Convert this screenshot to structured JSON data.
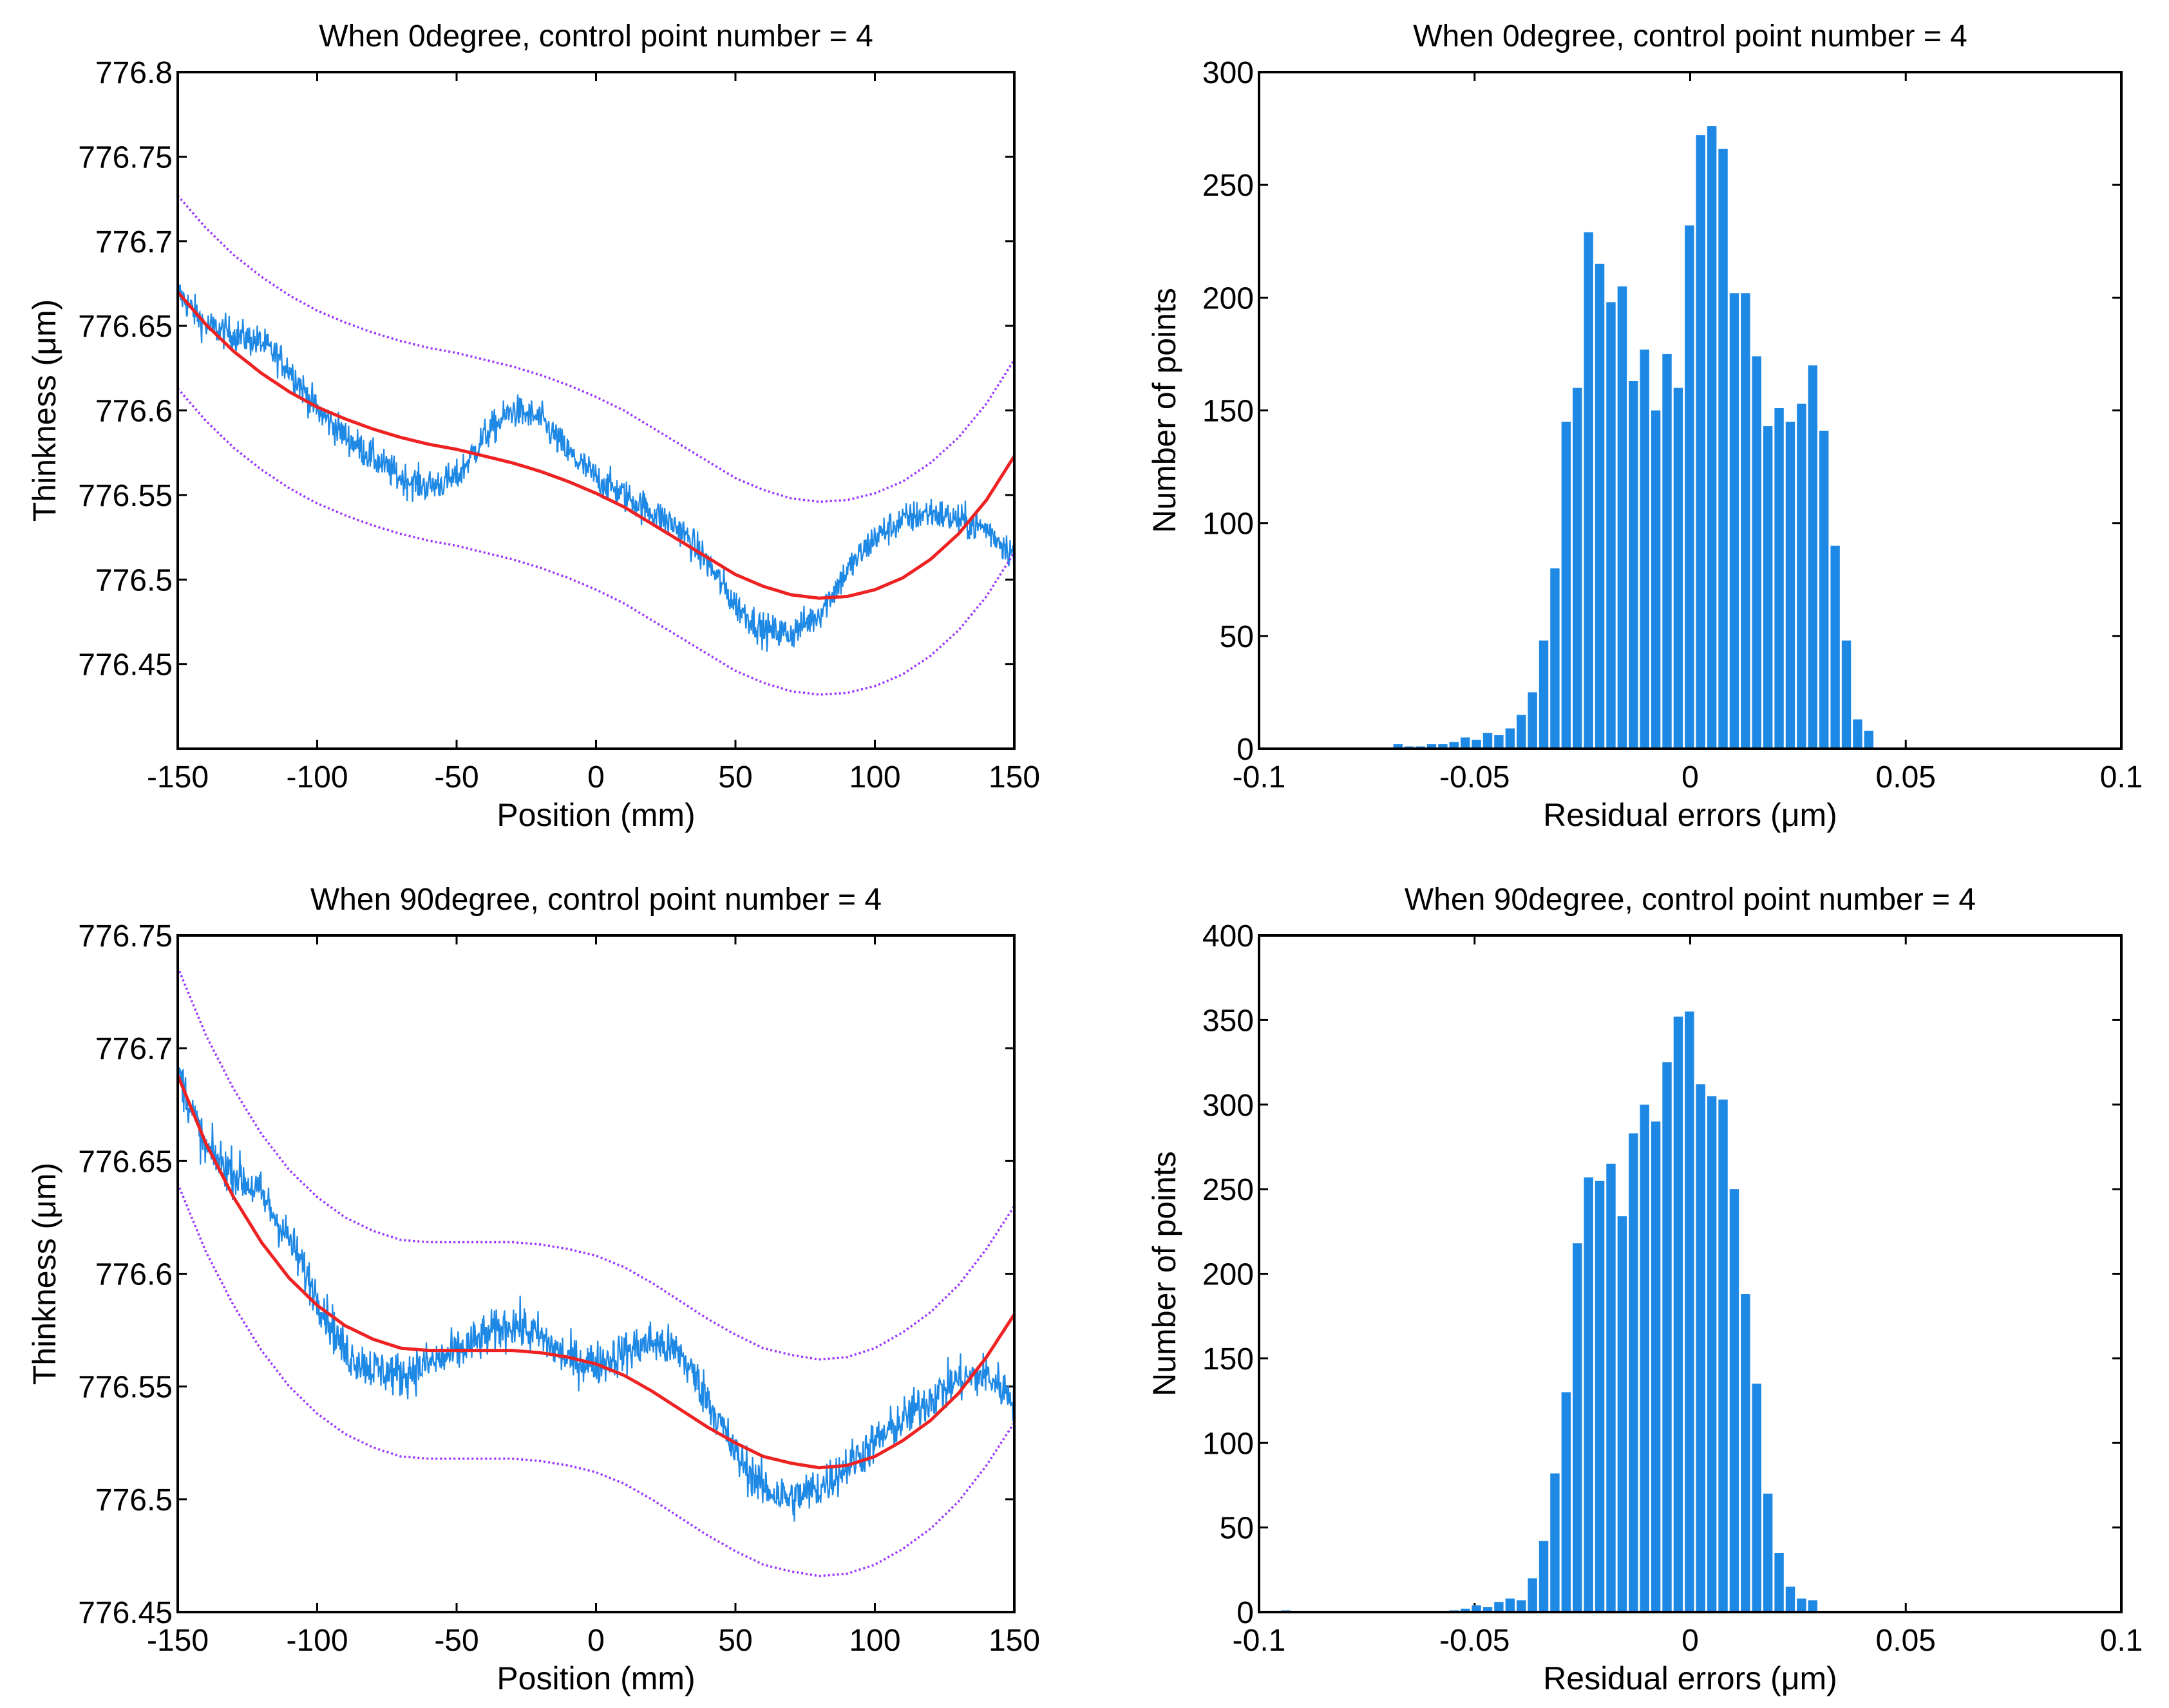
{
  "chart_data": [
    {
      "id": "p1",
      "type": "line",
      "title": "When 0degree, control point number = 4",
      "xlabel": "Position (mm)",
      "ylabel": "Thinkness (μm)",
      "xlim": [
        -150,
        150
      ],
      "ylim": [
        776.4,
        776.8
      ],
      "xticks": [
        -150,
        -100,
        -50,
        0,
        50,
        100,
        150
      ],
      "xtick_labels": [
        "-150",
        "-100",
        "-50",
        "0",
        "50",
        "100",
        "150"
      ],
      "yticks": [
        776.45,
        776.5,
        776.55,
        776.6,
        776.65,
        776.7,
        776.75,
        776.8
      ],
      "ytick_labels": [
        "776.45",
        "776.5",
        "776.55",
        "776.6",
        "776.65",
        "776.7",
        "776.75",
        "776.8"
      ],
      "colors": {
        "measured": "#1e88e5",
        "fit": "#ee2222",
        "bounds": "#9b30ff"
      },
      "series": [
        {
          "name": "Measured thickness",
          "kind": "noisy",
          "noise": 0.011,
          "x": [
            -150,
            -140,
            -130,
            -120,
            -110,
            -100,
            -90,
            -80,
            -70,
            -60,
            -50,
            -40,
            -30,
            -20,
            -10,
            0,
            10,
            20,
            30,
            40,
            50,
            60,
            70,
            80,
            90,
            100,
            110,
            120,
            130,
            140,
            150
          ],
          "y": [
            776.67,
            776.65,
            776.645,
            776.64,
            776.625,
            776.6,
            776.585,
            776.572,
            776.56,
            776.555,
            776.56,
            776.585,
            776.6,
            776.595,
            776.575,
            776.56,
            776.55,
            776.54,
            776.53,
            776.51,
            776.485,
            776.47,
            776.468,
            776.48,
            776.505,
            776.525,
            776.535,
            776.54,
            776.535,
            776.53,
            776.515
          ]
        },
        {
          "name": "Fitted curve",
          "kind": "line",
          "x": [
            -150,
            -140,
            -130,
            -120,
            -110,
            -100,
            -90,
            -80,
            -70,
            -60,
            -50,
            -40,
            -30,
            -20,
            -10,
            0,
            10,
            20,
            30,
            40,
            50,
            60,
            70,
            80,
            90,
            100,
            110,
            120,
            130,
            140,
            150
          ],
          "y": [
            776.67,
            776.651,
            776.635,
            776.622,
            776.611,
            776.602,
            776.595,
            776.589,
            776.584,
            776.58,
            776.577,
            776.573,
            776.569,
            776.564,
            776.558,
            776.551,
            776.543,
            776.533,
            776.523,
            776.513,
            776.503,
            776.496,
            776.491,
            776.489,
            776.49,
            776.494,
            776.501,
            776.512,
            776.527,
            776.547,
            776.573
          ]
        },
        {
          "name": "Upper bound",
          "kind": "dotted",
          "x": [
            -150,
            -140,
            -130,
            -120,
            -110,
            -100,
            -90,
            -80,
            -70,
            -60,
            -50,
            -40,
            -30,
            -20,
            -10,
            0,
            10,
            20,
            30,
            40,
            50,
            60,
            70,
            80,
            90,
            100,
            110,
            120,
            130,
            140,
            150
          ],
          "y": [
            776.727,
            776.708,
            776.692,
            776.679,
            776.668,
            776.659,
            776.652,
            776.646,
            776.641,
            776.637,
            776.634,
            776.63,
            776.626,
            776.621,
            776.615,
            776.608,
            776.6,
            776.59,
            776.58,
            776.57,
            776.56,
            776.553,
            776.548,
            776.546,
            776.547,
            776.551,
            776.558,
            776.569,
            776.584,
            776.604,
            776.63
          ]
        },
        {
          "name": "Lower bound",
          "kind": "dotted",
          "x": [
            -150,
            -140,
            -130,
            -120,
            -110,
            -100,
            -90,
            -80,
            -70,
            -60,
            -50,
            -40,
            -30,
            -20,
            -10,
            0,
            10,
            20,
            30,
            40,
            50,
            60,
            70,
            80,
            90,
            100,
            110,
            120,
            130,
            140,
            150
          ],
          "y": [
            776.613,
            776.594,
            776.578,
            776.565,
            776.554,
            776.545,
            776.538,
            776.532,
            776.527,
            776.523,
            776.52,
            776.516,
            776.512,
            776.507,
            776.501,
            776.494,
            776.486,
            776.476,
            776.466,
            776.456,
            776.446,
            776.439,
            776.434,
            776.432,
            776.433,
            776.437,
            776.444,
            776.455,
            776.47,
            776.49,
            776.516
          ]
        }
      ]
    },
    {
      "id": "p2",
      "type": "bar",
      "title": "When 0degree, control point number = 4",
      "xlabel": "Residual errors (μm)",
      "ylabel": "Number of points",
      "xlim": [
        -0.1,
        0.1
      ],
      "ylim": [
        0,
        300
      ],
      "xticks": [
        -0.1,
        -0.05,
        0,
        0.05,
        0.1
      ],
      "xtick_labels": [
        "-0.1",
        "-0.05",
        "0",
        "0.05",
        "0.1"
      ],
      "yticks": [
        0,
        50,
        100,
        150,
        200,
        250,
        300
      ],
      "ytick_labels": [
        "0",
        "50",
        "100",
        "150",
        "200",
        "250",
        "300"
      ],
      "bar_color": "#1e88e5",
      "bin_width": 0.0026,
      "x": [
        -0.0677,
        -0.0651,
        -0.0625,
        -0.0599,
        -0.0573,
        -0.0547,
        -0.0521,
        -0.0495,
        -0.0469,
        -0.0443,
        -0.0417,
        -0.0391,
        -0.0365,
        -0.0339,
        -0.0313,
        -0.0287,
        -0.0261,
        -0.0235,
        -0.0209,
        -0.0183,
        -0.0157,
        -0.0131,
        -0.0105,
        -0.0079,
        -0.0053,
        -0.0027,
        -0.0001,
        0.0025,
        0.0051,
        0.0077,
        0.0103,
        0.0129,
        0.0155,
        0.0181,
        0.0207,
        0.0233,
        0.0259,
        0.0285,
        0.0311,
        0.0337,
        0.0363,
        0.0389
      ],
      "values": [
        2,
        1,
        1,
        2,
        2,
        3,
        5,
        4,
        7,
        6,
        9,
        15,
        25,
        48,
        80,
        145,
        160,
        229,
        215,
        198,
        205,
        163,
        177,
        150,
        175,
        160,
        232,
        272,
        276,
        266,
        202,
        202,
        174,
        143,
        151,
        145,
        153,
        170,
        141,
        90,
        48,
        13
      ],
      "extra_values": [
        8
      ],
      "extra_x": [
        0.0389
      ]
    },
    {
      "id": "p3",
      "type": "line",
      "title": "When 90degree, control point number = 4",
      "xlabel": "Position (mm)",
      "ylabel": "Thinkness (μm)",
      "xlim": [
        -150,
        150
      ],
      "ylim": [
        776.45,
        776.75
      ],
      "xticks": [
        -150,
        -100,
        -50,
        0,
        50,
        100,
        150
      ],
      "xtick_labels": [
        "-150",
        "-100",
        "-50",
        "0",
        "50",
        "100",
        "150"
      ],
      "yticks": [
        776.45,
        776.5,
        776.55,
        776.6,
        776.65,
        776.7,
        776.75
      ],
      "ytick_labels": [
        "776.45",
        "776.5",
        "776.55",
        "776.6",
        "776.65",
        "776.7",
        "776.75"
      ],
      "colors": {
        "measured": "#1e88e5",
        "fit": "#ee2222",
        "bounds": "#9b30ff"
      },
      "series": [
        {
          "name": "Measured thickness",
          "kind": "noisy",
          "noise": 0.011,
          "x": [
            -150,
            -140,
            -130,
            -120,
            -110,
            -100,
            -90,
            -80,
            -70,
            -60,
            -50,
            -40,
            -30,
            -20,
            -10,
            0,
            10,
            20,
            30,
            40,
            50,
            60,
            70,
            80,
            90,
            100,
            110,
            120,
            130,
            140,
            150
          ],
          "y": [
            776.69,
            776.655,
            776.645,
            776.635,
            776.615,
            776.59,
            776.565,
            776.558,
            776.555,
            776.56,
            776.565,
            776.572,
            776.578,
            776.572,
            776.562,
            776.56,
            776.565,
            776.57,
            776.565,
            776.545,
            776.52,
            776.505,
            776.5,
            776.505,
            776.515,
            776.525,
            776.535,
            776.545,
            776.553,
            776.555,
            776.545
          ]
        },
        {
          "name": "Fitted curve",
          "kind": "line",
          "x": [
            -150,
            -140,
            -130,
            -120,
            -110,
            -100,
            -90,
            -80,
            -70,
            -60,
            -50,
            -40,
            -30,
            -20,
            -10,
            0,
            10,
            20,
            30,
            40,
            50,
            60,
            70,
            80,
            90,
            100,
            110,
            120,
            130,
            140,
            150
          ],
          "y": [
            776.688,
            776.658,
            776.634,
            776.614,
            776.598,
            776.586,
            776.577,
            776.571,
            776.567,
            776.566,
            776.566,
            776.566,
            776.566,
            776.565,
            776.563,
            776.56,
            776.555,
            776.548,
            776.54,
            776.532,
            776.525,
            776.519,
            776.516,
            776.514,
            776.515,
            776.519,
            776.526,
            776.535,
            776.547,
            776.563,
            776.582
          ]
        },
        {
          "name": "Upper bound",
          "kind": "dotted",
          "x": [
            -150,
            -140,
            -130,
            -120,
            -110,
            -100,
            -90,
            -80,
            -70,
            -60,
            -50,
            -40,
            -30,
            -20,
            -10,
            0,
            10,
            20,
            30,
            40,
            50,
            60,
            70,
            80,
            90,
            100,
            110,
            120,
            130,
            140,
            150
          ],
          "y": [
            776.736,
            776.706,
            776.682,
            776.662,
            776.646,
            776.634,
            776.625,
            776.619,
            776.615,
            776.614,
            776.614,
            776.614,
            776.614,
            776.613,
            776.611,
            776.608,
            776.603,
            776.596,
            776.588,
            776.58,
            776.573,
            776.567,
            776.564,
            776.562,
            776.563,
            776.567,
            776.574,
            776.583,
            776.595,
            776.611,
            776.63
          ]
        },
        {
          "name": "Lower bound",
          "kind": "dotted",
          "x": [
            -150,
            -140,
            -130,
            -120,
            -110,
            -100,
            -90,
            -80,
            -70,
            -60,
            -50,
            -40,
            -30,
            -20,
            -10,
            0,
            10,
            20,
            30,
            40,
            50,
            60,
            70,
            80,
            90,
            100,
            110,
            120,
            130,
            140,
            150
          ],
          "y": [
            776.64,
            776.61,
            776.586,
            776.566,
            776.55,
            776.538,
            776.529,
            776.523,
            776.519,
            776.518,
            776.518,
            776.518,
            776.518,
            776.517,
            776.515,
            776.512,
            776.507,
            776.5,
            776.492,
            776.484,
            776.477,
            776.471,
            776.468,
            776.466,
            776.467,
            776.471,
            776.478,
            776.487,
            776.499,
            776.515,
            776.534
          ]
        }
      ]
    },
    {
      "id": "p4",
      "type": "bar",
      "title": "When 90degree, control point number = 4",
      "xlabel": "Residual errors (μm)",
      "ylabel": "Number of points",
      "xlim": [
        -0.1,
        0.1
      ],
      "ylim": [
        0,
        400
      ],
      "xticks": [
        -0.1,
        -0.05,
        0,
        0.05,
        0.1
      ],
      "xtick_labels": [
        "-0.1",
        "-0.05",
        "0",
        "0.05",
        "0.1"
      ],
      "yticks": [
        0,
        50,
        100,
        150,
        200,
        250,
        300,
        350,
        400
      ],
      "ytick_labels": [
        "0",
        "50",
        "100",
        "150",
        "200",
        "250",
        "300",
        "350",
        "400"
      ],
      "bar_color": "#1e88e5",
      "bin_width": 0.0026,
      "x": [
        -0.0937,
        -0.0547,
        -0.0521,
        -0.0495,
        -0.0469,
        -0.0443,
        -0.0417,
        -0.0391,
        -0.0365,
        -0.0339,
        -0.0313,
        -0.0287,
        -0.0261,
        -0.0235,
        -0.0209,
        -0.0183,
        -0.0157,
        -0.0131,
        -0.0105,
        -0.0079,
        -0.0053,
        -0.0027,
        -0.0001,
        0.0025,
        0.0051,
        0.0077,
        0.0103,
        0.0129,
        0.0155,
        0.0181,
        0.0207,
        0.0233,
        0.0259,
        0.0285,
        0.0311,
        0.0337,
        0.0363
      ],
      "values": [
        1,
        1,
        2,
        4,
        3,
        6,
        8,
        7,
        20,
        42,
        82,
        130,
        218,
        257,
        255,
        265,
        234,
        283,
        300,
        290,
        325,
        352,
        355,
        312,
        305,
        303,
        250,
        188,
        135,
        70,
        35,
        15,
        8,
        7,
        0,
        0,
        0
      ],
      "extra_values": [],
      "extra_x": []
    }
  ]
}
